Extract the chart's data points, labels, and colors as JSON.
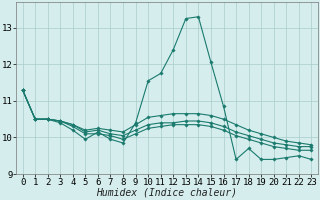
{
  "xlabel": "Humidex (Indice chaleur)",
  "background_color": "#d5eeed",
  "grid_color": "#a8ccca",
  "line_color": "#1a7a6e",
  "x_values": [
    0,
    1,
    2,
    3,
    4,
    5,
    6,
    7,
    8,
    9,
    10,
    11,
    12,
    13,
    14,
    15,
    16,
    17,
    18,
    19,
    20,
    21,
    22,
    23
  ],
  "series": [
    [
      11.3,
      10.5,
      10.5,
      10.4,
      10.2,
      9.95,
      10.15,
      9.95,
      9.85,
      10.4,
      11.55,
      11.75,
      12.4,
      13.25,
      13.3,
      12.05,
      10.85,
      9.4,
      9.7,
      9.4,
      9.4,
      9.45,
      9.5,
      9.4
    ],
    [
      11.3,
      10.5,
      10.5,
      10.45,
      10.35,
      10.2,
      10.25,
      10.2,
      10.15,
      10.35,
      10.55,
      10.6,
      10.65,
      10.65,
      10.65,
      10.6,
      10.5,
      10.35,
      10.2,
      10.1,
      10.0,
      9.9,
      9.85,
      9.8
    ],
    [
      11.3,
      10.5,
      10.5,
      10.45,
      10.35,
      10.15,
      10.2,
      10.1,
      10.05,
      10.2,
      10.35,
      10.4,
      10.4,
      10.45,
      10.45,
      10.4,
      10.3,
      10.15,
      10.05,
      9.95,
      9.85,
      9.8,
      9.75,
      9.75
    ],
    [
      11.3,
      10.5,
      10.5,
      10.45,
      10.3,
      10.1,
      10.1,
      10.05,
      9.95,
      10.1,
      10.25,
      10.3,
      10.35,
      10.35,
      10.35,
      10.3,
      10.2,
      10.05,
      9.95,
      9.85,
      9.75,
      9.7,
      9.65,
      9.65
    ]
  ],
  "ylim": [
    9.0,
    13.7
  ],
  "yticks": [
    9,
    10,
    11,
    12,
    13
  ],
  "xtick_labels": [
    "0",
    "1",
    "2",
    "3",
    "4",
    "5",
    "6",
    "7",
    "8",
    "9",
    "10",
    "11",
    "12",
    "13",
    "14",
    "15",
    "16",
    "17",
    "18",
    "19",
    "20",
    "21",
    "22",
    "23"
  ],
  "marker": "D",
  "markersize": 1.8,
  "linewidth": 0.8,
  "xlabel_fontsize": 7,
  "tick_fontsize": 6.5
}
